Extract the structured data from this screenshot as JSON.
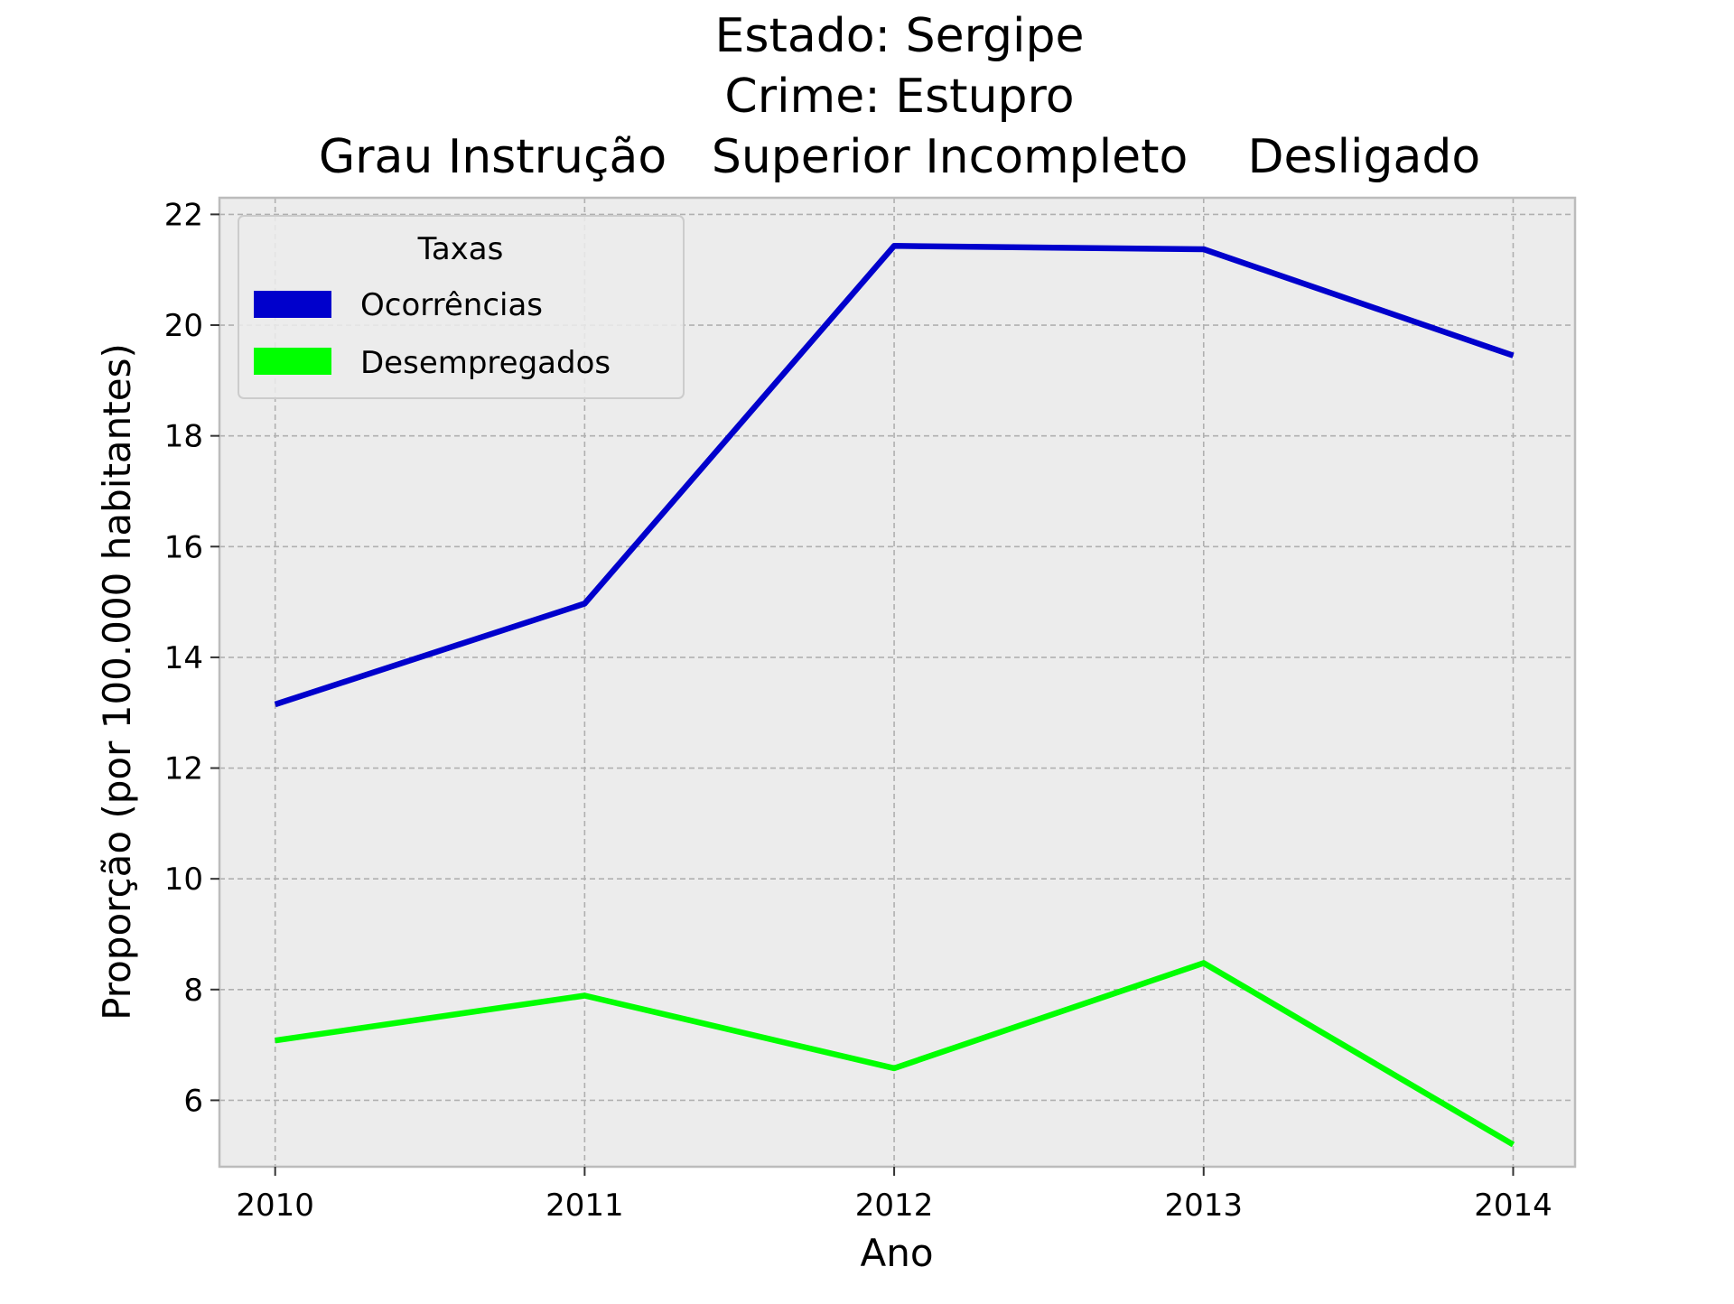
{
  "chart_data": {
    "type": "line",
    "title_lines": [
      "Estado: Sergipe",
      "Crime: Estupro",
      "Grau Instrução   Superior Incompleto    Desligado"
    ],
    "xlabel": "Ano",
    "ylabel": "Proporção (por 100.000 habitantes)",
    "x": [
      "2010",
      "2011",
      "2012",
      "2013",
      "2014"
    ],
    "xlim": [
      2009.82,
      2014.2
    ],
    "ylim": [
      4.8,
      22.3
    ],
    "yticks": [
      6,
      8,
      10,
      12,
      14,
      16,
      18,
      20,
      22
    ],
    "grid": true,
    "legend": {
      "title": "Taxas",
      "placement": "top-left"
    },
    "series": [
      {
        "name": "Ocorrências",
        "color": "#0000cc",
        "values": [
          13.15,
          14.97,
          21.43,
          21.37,
          19.45
        ]
      },
      {
        "name": "Desempregados",
        "color": "#00ff00",
        "values": [
          7.08,
          7.89,
          6.58,
          8.48,
          5.2
        ]
      }
    ],
    "colors": {
      "plot_background": "#ececec",
      "grid": "#b0b0b0",
      "axes_edge": "#bcbcbc"
    }
  }
}
